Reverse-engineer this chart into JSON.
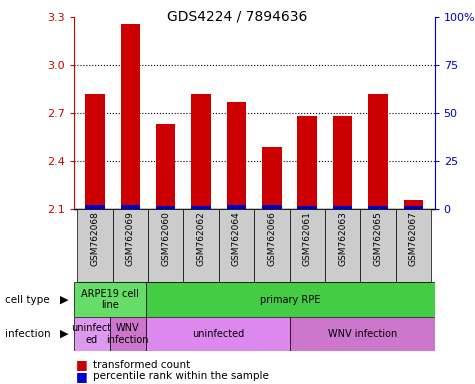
{
  "title": "GDS4224 / 7894636",
  "samples": [
    "GSM762068",
    "GSM762069",
    "GSM762060",
    "GSM762062",
    "GSM762064",
    "GSM762066",
    "GSM762061",
    "GSM762063",
    "GSM762065",
    "GSM762067"
  ],
  "red_values": [
    2.82,
    3.26,
    2.63,
    2.82,
    2.77,
    2.49,
    2.68,
    2.68,
    2.82,
    2.16
  ],
  "blue_values": [
    0.025,
    0.025,
    0.022,
    0.022,
    0.025,
    0.025,
    0.022,
    0.022,
    0.022,
    0.018
  ],
  "base": 2.1,
  "ylim_left": [
    2.1,
    3.3
  ],
  "ylim_right": [
    0,
    100
  ],
  "yticks_left": [
    2.1,
    2.4,
    2.7,
    3.0,
    3.3
  ],
  "yticks_right": [
    0,
    25,
    50,
    75,
    100
  ],
  "bar_color": "#cc0000",
  "blue_color": "#0000cc",
  "cell_type_groups": [
    {
      "label": "ARPE19 cell\nline",
      "start": 0,
      "end": 2,
      "color": "#66dd66"
    },
    {
      "label": "primary RPE",
      "start": 2,
      "end": 10,
      "color": "#44cc44"
    }
  ],
  "infection_groups": [
    {
      "label": "uninfect\ned",
      "start": 0,
      "end": 1,
      "color": "#dd99ee"
    },
    {
      "label": "WNV\ninfection",
      "start": 1,
      "end": 2,
      "color": "#cc77cc"
    },
    {
      "label": "uninfected",
      "start": 2,
      "end": 6,
      "color": "#dd88ee"
    },
    {
      "label": "WNV infection",
      "start": 6,
      "end": 10,
      "color": "#cc77cc"
    }
  ],
  "legend_red": "transformed count",
  "legend_blue": "percentile rank within the sample",
  "label_cell_type": "cell type",
  "label_infection": "infection",
  "tick_label_color_left": "#cc0000",
  "tick_label_color_right": "#0000cc",
  "bg_color": "#ffffff",
  "bar_width": 0.55,
  "xtick_bg_color": "#cccccc",
  "n_samples": 10
}
